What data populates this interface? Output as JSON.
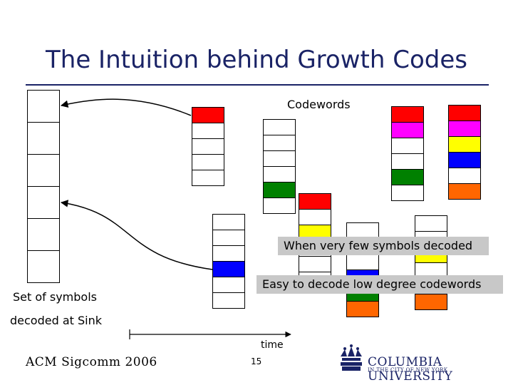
{
  "slide": {
    "title": "The Intuition behind Growth Codes",
    "codewords_label": "Codewords",
    "sink_label_line1": "Set of symbols",
    "sink_label_line2": "decoded at Sink",
    "callout_few": "When very few symbols decoded",
    "callout_easy": "Easy to decode low degree codewords",
    "time_label": "time",
    "footer": "ACM Sigcomm 2006",
    "page_number": "15",
    "logo_name": "COLUMBIA UNIVERSITY",
    "logo_subtitle": "IN THE CITY OF NEW YORK"
  },
  "colors": {
    "title": "#1a2366",
    "red": "#ff0000",
    "magenta": "#ff00ff",
    "yellow": "#ffff00",
    "blue": "#0000ff",
    "green": "#008000",
    "orange": "#ff6600",
    "callout_bg": "#c8c8c8"
  },
  "columns": [
    {
      "name": "codeword-column-1",
      "cells": [
        "red",
        "white",
        "white",
        "white",
        "white"
      ]
    },
    {
      "name": "codeword-column-2",
      "cells": [
        "white",
        "white",
        "white",
        "blue",
        "white",
        "white"
      ]
    },
    {
      "name": "codeword-column-3",
      "cells": [
        "white",
        "white",
        "white",
        "white",
        "green",
        "white"
      ]
    },
    {
      "name": "codeword-column-4",
      "cells": [
        "red",
        "white",
        "yellow",
        "white",
        "white",
        "white"
      ]
    },
    {
      "name": "codeword-column-5",
      "cells": [
        "white",
        "white",
        "white",
        "blue",
        "green",
        "orange"
      ]
    },
    {
      "name": "codeword-column-6",
      "cells": [
        "red",
        "magenta",
        "white",
        "white",
        "green",
        "white"
      ]
    },
    {
      "name": "codeword-column-7",
      "cells": [
        "white",
        "white",
        "yellow",
        "white",
        "white",
        "orange"
      ]
    },
    {
      "name": "codeword-column-8",
      "cells": [
        "red",
        "magenta",
        "yellow",
        "blue",
        "white",
        "orange"
      ]
    }
  ]
}
